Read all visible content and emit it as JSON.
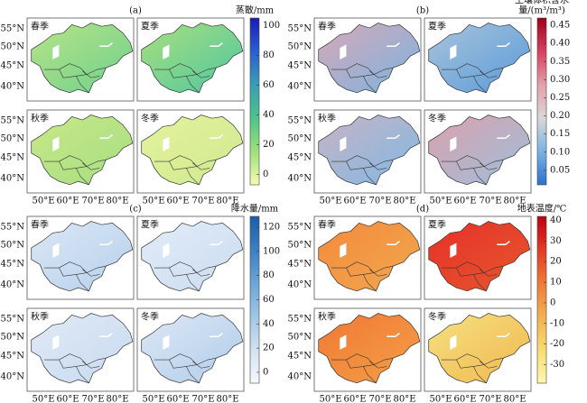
{
  "lat_labels": [
    "55°N",
    "50°N",
    "45°N",
    "40°N"
  ],
  "lon_labels": [
    "50°E",
    "60°E",
    "70°E",
    "80°E"
  ],
  "panels": [
    {
      "label": "(a)",
      "colorbar_label": [
        "蒸散/mm"
      ],
      "clim": [
        -7,
        105
      ],
      "ticks": [
        0,
        20,
        40,
        60,
        80,
        100
      ],
      "colormap": [
        "#f7fbb0",
        "#9ee07a",
        "#4cc58a",
        "#3a9db8",
        "#2a5fd0",
        "#1a1ab8"
      ],
      "maps": [
        {
          "season": "春季",
          "colors": [
            "#b6e486",
            "#6fd08e"
          ]
        },
        {
          "season": "夏季",
          "colors": [
            "#a8e07e",
            "#4fc6a0"
          ]
        },
        {
          "season": "秋季",
          "colors": [
            "#c8e888",
            "#a6de82"
          ]
        },
        {
          "season": "冬季",
          "colors": [
            "#e4f29e",
            "#cfe98e"
          ]
        }
      ]
    },
    {
      "label": "(b)",
      "colorbar_label": [
        "土壤体积含水",
        "量/(m³/m³)"
      ],
      "clim": [
        0.01,
        0.47
      ],
      "ticks": [
        0.05,
        {
          "value": 0.1,
          "label": "0.10"
        },
        0.15,
        {
          "value": 0.2,
          "label": "0.20"
        },
        0.25,
        {
          "value": 0.3,
          "label": "0.30"
        },
        0.35,
        {
          "value": 0.4,
          "label": "0.40"
        },
        0.45
      ],
      "colormap": [
        "#2a70d0",
        "#7ab4e4",
        "#d8d8d8",
        "#e6a0a8",
        "#d84060",
        "#a00018"
      ],
      "maps": [
        {
          "season": "春季",
          "colors": [
            "#d8a8b8",
            "#7ab4e0"
          ]
        },
        {
          "season": "夏季",
          "colors": [
            "#a8c4dc",
            "#5a9ad8"
          ]
        },
        {
          "season": "秋季",
          "colors": [
            "#c8b4c4",
            "#80b8e4"
          ]
        },
        {
          "season": "冬季",
          "colors": [
            "#dca0ac",
            "#9cc0dc"
          ]
        }
      ]
    },
    {
      "label": "(c)",
      "colorbar_label": [
        "降水量/mm"
      ],
      "clim": [
        -9,
        129
      ],
      "ticks": [
        0,
        20,
        40,
        60,
        80,
        100,
        120
      ],
      "colormap": [
        "#f6f9fd",
        "#d2e2f2",
        "#a0c6e6",
        "#6aa6d8",
        "#3a80c4",
        "#1a5ea8"
      ],
      "maps": [
        {
          "season": "春季",
          "colors": [
            "#dbe7f5",
            "#b6d0ec"
          ]
        },
        {
          "season": "夏季",
          "colors": [
            "#e2ecf8",
            "#cadcf0"
          ]
        },
        {
          "season": "秋季",
          "colors": [
            "#e0eaf6",
            "#c8daf0"
          ]
        },
        {
          "season": "冬季",
          "colors": [
            "#dde8f5",
            "#b0ccea"
          ]
        }
      ]
    },
    {
      "label": "(d)",
      "colorbar_label": [
        "地表温度/℃"
      ],
      "clim": [
        -39,
        42
      ],
      "ticks": [
        -30,
        -20,
        -10,
        0,
        10,
        20,
        30,
        40
      ],
      "colormap": [
        "#fff6b0",
        "#f8dc70",
        "#f4b050",
        "#f07a38",
        "#e43a24",
        "#c00010"
      ],
      "maps": [
        {
          "season": "春季",
          "colors": [
            "#f48a3c",
            "#f0a850"
          ]
        },
        {
          "season": "夏季",
          "colors": [
            "#e8302a",
            "#e4582c"
          ]
        },
        {
          "season": "秋季",
          "colors": [
            "#f07834",
            "#f4a048"
          ]
        },
        {
          "season": "冬季",
          "colors": [
            "#f6e080",
            "#f0b850"
          ]
        }
      ]
    }
  ]
}
